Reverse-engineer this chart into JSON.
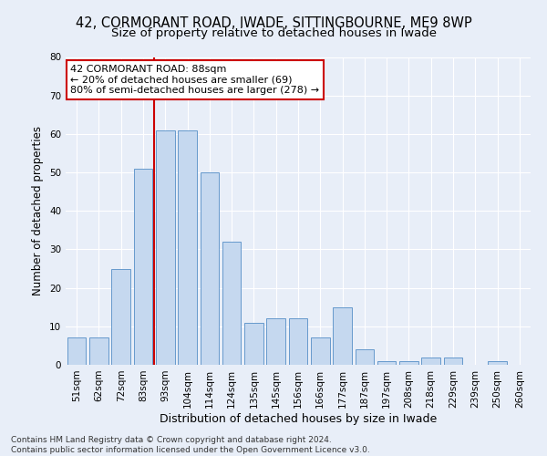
{
  "title": "42, CORMORANT ROAD, IWADE, SITTINGBOURNE, ME9 8WP",
  "subtitle": "Size of property relative to detached houses in Iwade",
  "xlabel": "Distribution of detached houses by size in Iwade",
  "ylabel": "Number of detached properties",
  "categories": [
    "51sqm",
    "62sqm",
    "72sqm",
    "83sqm",
    "93sqm",
    "104sqm",
    "114sqm",
    "124sqm",
    "135sqm",
    "145sqm",
    "156sqm",
    "166sqm",
    "177sqm",
    "187sqm",
    "197sqm",
    "208sqm",
    "218sqm",
    "229sqm",
    "239sqm",
    "250sqm",
    "260sqm"
  ],
  "values": [
    7,
    7,
    25,
    51,
    61,
    61,
    50,
    32,
    11,
    12,
    12,
    7,
    15,
    4,
    1,
    1,
    2,
    2,
    0,
    1,
    0
  ],
  "bar_color": "#c5d8ef",
  "bar_edge_color": "#6699cc",
  "bar_edge_width": 0.7,
  "vline_x_index": 3.5,
  "vline_color": "#cc0000",
  "ann_line1": "42 CORMORANT ROAD: 88sqm",
  "ann_line2": "← 20% of detached houses are smaller (69)",
  "ann_line3": "80% of semi-detached houses are larger (278) →",
  "annotation_box_facecolor": "#ffffff",
  "annotation_box_edgecolor": "#cc0000",
  "ylim_min": 0,
  "ylim_max": 80,
  "yticks": [
    0,
    10,
    20,
    30,
    40,
    50,
    60,
    70,
    80
  ],
  "fig_bg_color": "#e8eef8",
  "ax_bg_color": "#e8eef8",
  "grid_color": "#ffffff",
  "footer_line1": "Contains HM Land Registry data © Crown copyright and database right 2024.",
  "footer_line2": "Contains public sector information licensed under the Open Government Licence v3.0.",
  "title_fontsize": 10.5,
  "subtitle_fontsize": 9.5,
  "xlabel_fontsize": 9,
  "ylabel_fontsize": 8.5,
  "tick_fontsize": 7.5,
  "annotation_fontsize": 8,
  "footer_fontsize": 6.5
}
